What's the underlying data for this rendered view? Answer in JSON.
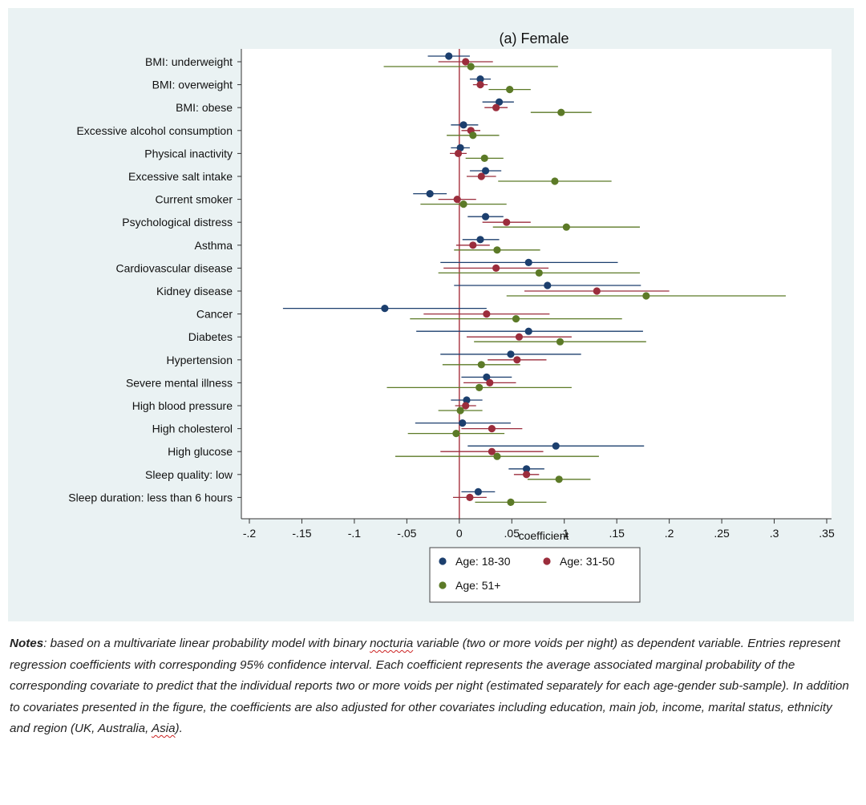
{
  "chart_data": {
    "type": "scatter",
    "orientation": "horizontal",
    "title": "(a) Female",
    "xlabel": "coefficient",
    "ylabel": "",
    "xlim": [
      -0.2,
      0.35
    ],
    "xticks": [
      -0.2,
      -0.15,
      -0.1,
      -0.05,
      0,
      0.05,
      0.1,
      0.15,
      0.2,
      0.25,
      0.3,
      0.35
    ],
    "xtick_labels": [
      "-.2",
      "-.15",
      "-.1",
      "-.05",
      "0",
      ".05",
      ".1",
      ".15",
      ".2",
      ".25",
      ".3",
      ".35"
    ],
    "reference_line": 0,
    "grid": false,
    "legend_position": "bottom",
    "categories": [
      "BMI: underweight",
      "BMI: overweight",
      "BMI: obese",
      "Excessive alcohol consumption",
      "Physical inactivity",
      "Excessive salt intake",
      "Current smoker",
      "Psychological distress",
      "Asthma",
      "Cardiovascular disease",
      "Kidney disease",
      "Cancer",
      "Diabetes",
      "Hypertension",
      "Severe mental illness",
      "High blood pressure",
      "High cholesterol",
      "High glucose",
      "Sleep quality: low",
      "Sleep duration: less than 6 hours"
    ],
    "series": [
      {
        "name": "Age: 18-30",
        "color": "#1c3f6e",
        "values": [
          -0.01,
          0.02,
          0.038,
          0.004,
          0.001,
          0.025,
          -0.028,
          0.025,
          0.02,
          0.066,
          0.084,
          -0.071,
          0.066,
          0.049,
          0.026,
          0.007,
          0.003,
          0.092,
          0.064,
          0.018
        ],
        "ci_low": [
          -0.03,
          0.01,
          0.022,
          -0.008,
          -0.008,
          0.01,
          -0.044,
          0.008,
          0.003,
          -0.018,
          -0.005,
          -0.168,
          -0.041,
          -0.018,
          0.002,
          -0.008,
          -0.042,
          0.008,
          0.047,
          0.002
        ],
        "ci_high": [
          0.01,
          0.03,
          0.052,
          0.018,
          0.01,
          0.04,
          -0.012,
          0.042,
          0.038,
          0.151,
          0.173,
          0.026,
          0.175,
          0.116,
          0.05,
          0.022,
          0.049,
          0.176,
          0.081,
          0.034
        ]
      },
      {
        "name": "Age: 31-50",
        "color": "#9b2d3c",
        "values": [
          0.006,
          0.02,
          0.035,
          0.011,
          -0.001,
          0.021,
          -0.002,
          0.045,
          0.013,
          0.035,
          0.131,
          0.026,
          0.057,
          0.055,
          0.029,
          0.006,
          0.031,
          0.031,
          0.064,
          0.01
        ],
        "ci_low": [
          -0.02,
          0.013,
          0.024,
          0.002,
          -0.009,
          0.007,
          -0.02,
          0.022,
          -0.003,
          -0.015,
          0.062,
          -0.034,
          0.007,
          0.027,
          0.004,
          -0.004,
          0.002,
          -0.018,
          0.052,
          -0.006
        ],
        "ci_high": [
          0.032,
          0.027,
          0.046,
          0.02,
          0.007,
          0.035,
          0.016,
          0.068,
          0.029,
          0.085,
          0.2,
          0.086,
          0.107,
          0.083,
          0.054,
          0.016,
          0.06,
          0.08,
          0.076,
          0.026
        ]
      },
      {
        "name": "Age: 51+",
        "color": "#5c7a27",
        "values": [
          0.011,
          0.048,
          0.097,
          0.013,
          0.024,
          0.091,
          0.004,
          0.102,
          0.036,
          0.076,
          0.178,
          0.054,
          0.096,
          0.021,
          0.019,
          0.001,
          -0.003,
          0.036,
          0.095,
          0.049
        ],
        "ci_low": [
          -0.072,
          0.028,
          0.068,
          -0.012,
          0.006,
          0.037,
          -0.037,
          0.032,
          -0.005,
          -0.02,
          0.045,
          -0.047,
          0.014,
          -0.016,
          -0.069,
          -0.02,
          -0.049,
          -0.061,
          0.065,
          0.015
        ],
        "ci_high": [
          0.094,
          0.068,
          0.126,
          0.038,
          0.042,
          0.145,
          0.045,
          0.172,
          0.077,
          0.172,
          0.311,
          0.155,
          0.178,
          0.058,
          0.107,
          0.022,
          0.043,
          0.133,
          0.125,
          0.083
        ]
      }
    ]
  },
  "notes": {
    "label": "Notes",
    "p1": ": based on a multivariate linear probability model with binary ",
    "w1": "nocturia",
    "p2": " variable (two or more voids per night) as dependent variable. Entries represent regression coefficients with corresponding 95% confidence interval. Each coefficient represents the average associated marginal probability of the corresponding covariate to predict that the individual reports two or more voids per night (estimated separately for each age-gender sub-sample). In addition to covariates presented in the figure, the coefficients are also adjusted for other covariates including education, main job, income, marital status, ethnicity and region (UK, Australia, ",
    "w2": "Asia",
    "p3": ")."
  }
}
